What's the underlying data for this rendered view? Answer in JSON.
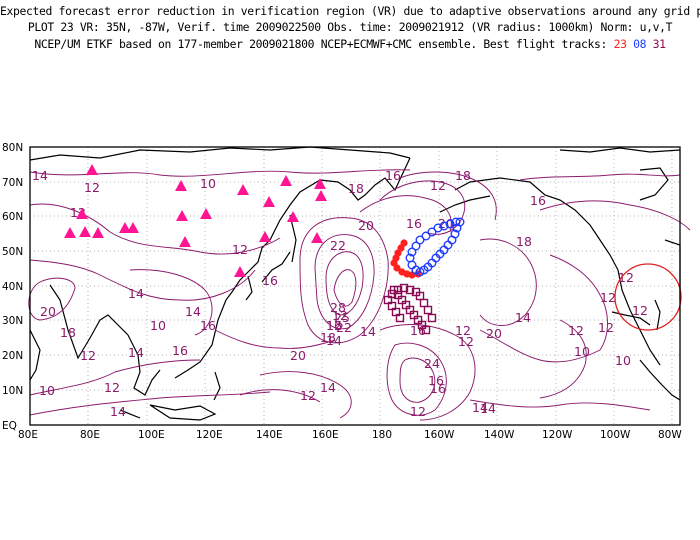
{
  "header": {
    "line1": "Expected forecast error reduction in verification region (VR) due to adaptive observations around any grid point.",
    "line2": "PLOT 23 VR: 35N, -87W, Verif. time 2009022500 Obs. time: 2009021912 (VR radius: 1000km) Norm: u,v,T",
    "line3_prefix": "NCEP/UM ETKF based on 177-member 2009021800 NCEP+ECMWF+CMC ensemble. Best flight tracks: ",
    "track_a": "23",
    "track_b": "08",
    "track_c": "31"
  },
  "map": {
    "lat_ticks": [
      "80N",
      "70N",
      "60N",
      "50N",
      "40N",
      "30N",
      "20N",
      "10N",
      "EQ"
    ],
    "lon_ticks": [
      "80E",
      "80E",
      "100E",
      "120E",
      "140E",
      "160E",
      "180",
      "160W",
      "140W",
      "120W",
      "100W",
      "80W"
    ],
    "contour_labels": [
      "14",
      "12",
      "10",
      "12",
      "14",
      "12",
      "16",
      "14",
      "16",
      "18",
      "16",
      "12",
      "16",
      "18",
      "20",
      "16",
      "20",
      "22",
      "18",
      "12",
      "12",
      "14",
      "20",
      "12",
      "10",
      "14",
      "16",
      "12",
      "12",
      "14",
      "28",
      "25",
      "22",
      "18",
      "16",
      "12",
      "14",
      "16",
      "12",
      "12",
      "10",
      "12",
      "14",
      "20",
      "18",
      "10",
      "14",
      "12",
      "14",
      "20",
      "24",
      "16",
      "12",
      "14",
      "12",
      "10",
      "12",
      "16"
    ],
    "verification_region": {
      "lat": 35,
      "lon": -87,
      "radius_km": 1000
    },
    "colors": {
      "contour": "#8b1a6b",
      "coast": "#000000",
      "grid": "#999999",
      "track_red": "#ff2020",
      "track_blue": "#1e3cff",
      "track_purple": "#8b0a55",
      "triangles": "#ff1493",
      "vr_circle": "#e02020"
    }
  }
}
